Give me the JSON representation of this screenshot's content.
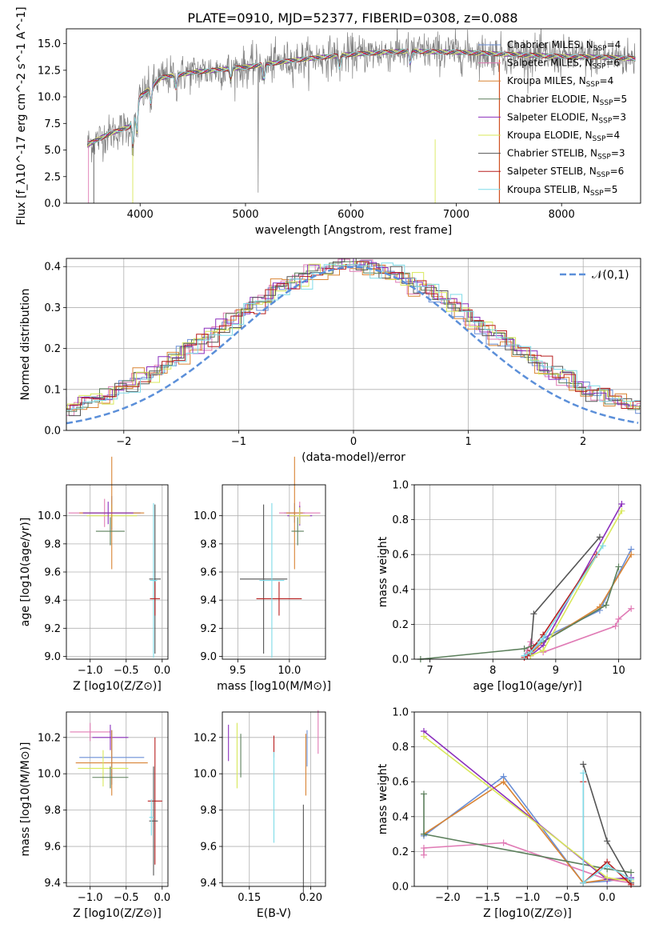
{
  "figure": {
    "title": "PLATE=0910, MJD=52377, FIBERID=0308, z=0.088"
  },
  "models": [
    {
      "name": "Chabrier MILES",
      "nssp": 4,
      "color": "#6a8fd6"
    },
    {
      "name": "Salpeter MILES",
      "nssp": 6,
      "color": "#e07bb5"
    },
    {
      "name": "Kroupa MILES",
      "nssp": 4,
      "color": "#d98434"
    },
    {
      "name": "Chabrier ELODIE",
      "nssp": 5,
      "color": "#5b7f5b"
    },
    {
      "name": "Salpeter ELODIE",
      "nssp": 3,
      "color": "#8b2fbd"
    },
    {
      "name": "Kroupa ELODIE",
      "nssp": 4,
      "color": "#d8e85a"
    },
    {
      "name": "Chabrier STELIB",
      "nssp": 3,
      "color": "#555555"
    },
    {
      "name": "Salpeter STELIB",
      "nssp": 6,
      "color": "#b81f1f"
    },
    {
      "name": "Kroupa STELIB",
      "nssp": 5,
      "color": "#7fdbe8"
    }
  ],
  "chart_data": [
    {
      "id": "spectrum",
      "type": "line",
      "title": "PLATE=0910, MJD=52377, FIBERID=0308, z=0.088",
      "xlabel": "wavelength [Angstrom, rest frame]",
      "ylabel": "Flux [f_λ10^-17 erg cm^-2 s^-1 A^-1]",
      "xlim": [
        3300,
        8750
      ],
      "ylim": [
        0,
        16.4
      ],
      "xticks": [
        "4000",
        "5000",
        "6000",
        "7000",
        "8000"
      ],
      "yticks": [
        "0.0",
        "2.5",
        "5.0",
        "7.5",
        "10.0",
        "12.5",
        "15.0"
      ],
      "data_color": "#808080",
      "continuum": {
        "x": [
          3500,
          3700,
          3900,
          4000,
          4200,
          4500,
          5000,
          5500,
          6000,
          6500,
          7000,
          7500,
          8000,
          8500,
          8700
        ],
        "y": [
          5.5,
          6.5,
          7.2,
          10.0,
          11.8,
          12.3,
          12.8,
          13.5,
          14.0,
          14.3,
          14.2,
          14.0,
          13.8,
          13.7,
          13.6
        ]
      },
      "grid": false,
      "legend": "upper right"
    },
    {
      "id": "residuals",
      "type": "histogram",
      "xlabel": "(data-model)/error",
      "ylabel": "Normed distribution",
      "xlim": [
        -2.5,
        2.5
      ],
      "ylim": [
        0,
        0.42
      ],
      "xticks": [
        "−2",
        "−1",
        "0",
        "1",
        "2"
      ],
      "yticks": [
        "0.0",
        "0.1",
        "0.2",
        "0.3",
        "0.4"
      ],
      "reference": {
        "name": "𝒩(0,1)",
        "mean": 0,
        "sigma": 1,
        "color": "#5b8fd9"
      },
      "grid": true,
      "legend": "upper right"
    },
    {
      "id": "age-vs-Z",
      "type": "errorbar",
      "xlabel": "Z [log10(Z/Z⊙)]",
      "ylabel": "age [log10(age/yr)]",
      "xlim": [
        -1.33,
        0.08
      ],
      "ylim": [
        8.98,
        10.22
      ],
      "xticks": [
        "−1.0",
        "−0.5",
        "0.0"
      ],
      "yticks": [
        "9.0",
        "9.2",
        "9.4",
        "9.6",
        "9.8",
        "10.0"
      ],
      "points": [
        {
          "x": -0.8,
          "y": 10.02,
          "xerr": 0.5,
          "yerr": 0.1,
          "model": 1
        },
        {
          "x": -0.7,
          "y": 10.02,
          "xerr": 0.4,
          "yerr": 0.12,
          "model": 0
        },
        {
          "x": -0.7,
          "y": 10.0,
          "xerr": 0.35,
          "yerr": 0.08,
          "model": 5
        },
        {
          "x": -0.7,
          "y": 10.02,
          "xerr": 0.45,
          "yerr": 0.4,
          "model": 2
        },
        {
          "x": -0.75,
          "y": 10.02,
          "xerr": 0.35,
          "yerr": 0.08,
          "model": 4
        },
        {
          "x": -0.72,
          "y": 9.89,
          "xerr": 0.2,
          "yerr": 0.1,
          "model": 3
        },
        {
          "x": -0.1,
          "y": 9.55,
          "xerr": 0.08,
          "yerr": 0.53,
          "model": 6
        },
        {
          "x": -0.12,
          "y": 9.54,
          "xerr": 0.05,
          "yerr": 0.55,
          "model": 8
        },
        {
          "x": -0.1,
          "y": 9.41,
          "xerr": 0.07,
          "yerr": 0.12,
          "model": 7
        }
      ],
      "grid": true
    },
    {
      "id": "age-vs-mass",
      "type": "errorbar",
      "xlabel": "mass [log10(M/M⊙)]",
      "ylabel": "",
      "xlim": [
        9.35,
        10.35
      ],
      "ylim": [
        8.98,
        10.22
      ],
      "xticks": [
        "9.5",
        "10.0"
      ],
      "yticks": [
        "9.0",
        "9.2",
        "9.4",
        "9.6",
        "9.8",
        "10.0"
      ],
      "points": [
        {
          "x": 10.05,
          "y": 10.02,
          "xerr": 0.1,
          "yerr": 0.07,
          "model": 0
        },
        {
          "x": 10.1,
          "y": 10.02,
          "xerr": 0.2,
          "yerr": 0.08,
          "model": 1
        },
        {
          "x": 10.05,
          "y": 10.02,
          "xerr": 0.08,
          "yerr": 0.4,
          "model": 2
        },
        {
          "x": 10.08,
          "y": 9.89,
          "xerr": 0.06,
          "yerr": 0.1,
          "model": 3
        },
        {
          "x": 10.1,
          "y": 10.0,
          "xerr": 0.12,
          "yerr": 0.07,
          "model": 4
        },
        {
          "x": 10.1,
          "y": 10.0,
          "xerr": 0.1,
          "yerr": 0.06,
          "model": 5
        },
        {
          "x": 9.75,
          "y": 9.55,
          "xerr": 0.23,
          "yerr": 0.53,
          "model": 6
        },
        {
          "x": 9.9,
          "y": 9.41,
          "xerr": 0.22,
          "yerr": 0.12,
          "model": 7
        },
        {
          "x": 9.83,
          "y": 9.54,
          "xerr": 0.12,
          "yerr": 0.55,
          "model": 8
        }
      ],
      "grid": true
    },
    {
      "id": "weight-vs-age",
      "type": "line",
      "xlabel": "age [log10(age/yr)]",
      "ylabel": "mass weight",
      "xlim": [
        6.75,
        10.35
      ],
      "ylim": [
        0,
        1.0
      ],
      "xticks": [
        "7",
        "8",
        "9",
        "10"
      ],
      "yticks": [
        "0.0",
        "0.2",
        "0.4",
        "0.6",
        "0.8",
        "1.0"
      ],
      "series": [
        {
          "model": 0,
          "x": [
            8.5,
            8.6,
            8.8,
            9.7,
            10.2
          ],
          "y": [
            0.02,
            0.03,
            0.12,
            0.28,
            0.63
          ]
        },
        {
          "model": 1,
          "x": [
            8.5,
            8.55,
            8.6,
            8.8,
            9.95,
            10.0,
            10.2
          ],
          "y": [
            0.02,
            0.05,
            0.1,
            0.04,
            0.19,
            0.23,
            0.29
          ]
        },
        {
          "model": 2,
          "x": [
            8.6,
            8.8,
            9.7,
            10.2
          ],
          "y": [
            0.03,
            0.1,
            0.3,
            0.6
          ]
        },
        {
          "model": 3,
          "x": [
            6.85,
            8.5,
            8.8,
            9.8,
            10.0
          ],
          "y": [
            0.0,
            0.06,
            0.1,
            0.31,
            0.53
          ]
        },
        {
          "model": 4,
          "x": [
            8.6,
            8.8,
            10.05
          ],
          "y": [
            0.02,
            0.08,
            0.89
          ]
        },
        {
          "model": 5,
          "x": [
            8.6,
            8.8,
            10.05
          ],
          "y": [
            0.02,
            0.05,
            0.85
          ]
        },
        {
          "model": 6,
          "x": [
            8.6,
            8.65,
            9.7
          ],
          "y": [
            0.04,
            0.26,
            0.7
          ]
        },
        {
          "model": 7,
          "x": [
            8.5,
            8.55,
            8.6,
            8.8,
            9.65
          ],
          "y": [
            0.01,
            0.02,
            0.05,
            0.14,
            0.6
          ]
        },
        {
          "model": 8,
          "x": [
            8.5,
            8.6,
            8.75,
            8.8,
            9.75
          ],
          "y": [
            0.02,
            0.04,
            0.1,
            0.12,
            0.65
          ]
        }
      ],
      "grid": true
    },
    {
      "id": "mass-vs-Z",
      "type": "errorbar",
      "xlabel": "Z [log10(Z/Z⊙)]",
      "ylabel": "mass [log10(M/M⊙)]",
      "xlim": [
        -1.33,
        0.08
      ],
      "ylim": [
        9.38,
        10.34
      ],
      "xticks": [
        "−1.0",
        "−0.5",
        "0.0"
      ],
      "yticks": [
        "9.4",
        "9.6",
        "9.8",
        "10.0",
        "10.2"
      ],
      "points": [
        {
          "x": -1.0,
          "y": 10.23,
          "xerr": 0.28,
          "yerr": 0.05,
          "model": 1
        },
        {
          "x": -0.72,
          "y": 10.2,
          "xerr": 0.25,
          "yerr": 0.07,
          "model": 4
        },
        {
          "x": -0.7,
          "y": 10.09,
          "xerr": 0.45,
          "yerr": 0.15,
          "model": 0
        },
        {
          "x": -0.7,
          "y": 10.06,
          "xerr": 0.5,
          "yerr": 0.18,
          "model": 2
        },
        {
          "x": -0.82,
          "y": 10.03,
          "xerr": 0.35,
          "yerr": 0.1,
          "model": 5
        },
        {
          "x": -0.72,
          "y": 9.98,
          "xerr": 0.25,
          "yerr": 0.06,
          "model": 3
        },
        {
          "x": -0.1,
          "y": 9.85,
          "xerr": 0.1,
          "yerr": 0.35,
          "model": 7
        },
        {
          "x": -0.12,
          "y": 9.74,
          "xerr": 0.06,
          "yerr": 0.3,
          "model": 6
        },
        {
          "x": -0.15,
          "y": 9.76,
          "xerr": 0.03,
          "yerr": 0.1,
          "model": 8
        }
      ],
      "grid": true
    },
    {
      "id": "mass-vs-EBV",
      "type": "errorbar",
      "xlabel": "E(B-V)",
      "ylabel": "",
      "xlim": [
        0.128,
        0.212
      ],
      "ylim": [
        9.38,
        10.34
      ],
      "xticks": [
        "0.15",
        "0.20"
      ],
      "yticks": [
        "9.4",
        "9.6",
        "9.8",
        "10.0",
        "10.2"
      ],
      "points": [
        {
          "x": 0.133,
          "y": 10.17,
          "xerr": 0,
          "yerr": 0.1,
          "model": 4
        },
        {
          "x": 0.14,
          "y": 10.1,
          "xerr": 0,
          "yerr": 0.18,
          "model": 5
        },
        {
          "x": 0.143,
          "y": 10.1,
          "xerr": 0,
          "yerr": 0.12,
          "model": 3
        },
        {
          "x": 0.17,
          "y": 10.15,
          "xerr": 0,
          "yerr": 0.06,
          "model": 7
        },
        {
          "x": 0.17,
          "y": 9.87,
          "xerr": 0,
          "yerr": 0.25,
          "model": 8
        },
        {
          "x": 0.194,
          "y": 9.58,
          "xerr": 0,
          "yerr": 0.25,
          "model": 6
        },
        {
          "x": 0.196,
          "y": 10.05,
          "xerr": 0,
          "yerr": 0.17,
          "model": 2
        },
        {
          "x": 0.197,
          "y": 10.14,
          "xerr": 0,
          "yerr": 0.1,
          "model": 0
        },
        {
          "x": 0.206,
          "y": 10.23,
          "xerr": 0,
          "yerr": 0.12,
          "model": 1
        }
      ],
      "grid": true
    },
    {
      "id": "weight-vs-Z",
      "type": "line",
      "xlabel": "Z [log10(Z/Z⊙)]",
      "ylabel": "mass weight",
      "xlim": [
        -2.42,
        0.42
      ],
      "ylim": [
        0,
        1.0
      ],
      "xticks": [
        "−2.0",
        "−1.5",
        "−1.0",
        "−0.5",
        "0.0"
      ],
      "yticks": [
        "0.0",
        "0.2",
        "0.4",
        "0.6",
        "0.8",
        "1.0"
      ],
      "series": [
        {
          "model": 0,
          "x": [
            -2.3,
            -1.3,
            -0.3,
            0.0,
            0.3
          ],
          "y": [
            0.29,
            0.63,
            0.02,
            0.03,
            0.05
          ]
        },
        {
          "model": 1,
          "x": [
            -2.3,
            -2.3,
            -1.3,
            0.0,
            0.3
          ],
          "y": [
            0.18,
            0.22,
            0.25,
            0.04,
            0.02
          ]
        },
        {
          "model": 2,
          "x": [
            -2.3,
            -1.3,
            -0.3,
            0.0,
            0.3
          ],
          "y": [
            0.3,
            0.6,
            0.02,
            0.04,
            0.04
          ]
        },
        {
          "model": 3,
          "x": [
            -2.3,
            -2.3,
            0.0,
            0.3
          ],
          "y": [
            0.53,
            0.3,
            0.1,
            0.08
          ]
        },
        {
          "model": 4,
          "x": [
            -2.3,
            0.0,
            0.3
          ],
          "y": [
            0.89,
            0.04,
            0.05
          ]
        },
        {
          "model": 5,
          "x": [
            -2.3,
            0.0,
            0.3
          ],
          "y": [
            0.86,
            0.05,
            0.03
          ]
        },
        {
          "model": 6,
          "x": [
            -0.3,
            0.0,
            0.3
          ],
          "y": [
            0.7,
            0.26,
            0.02
          ]
        },
        {
          "model": 7,
          "x": [
            -0.3,
            -0.3,
            0.0,
            0.3
          ],
          "y": [
            0.6,
            0.02,
            0.14,
            0.01
          ]
        },
        {
          "model": 8,
          "x": [
            -0.3,
            -0.3,
            0.0,
            0.3
          ],
          "y": [
            0.65,
            0.02,
            0.12,
            0.04
          ]
        }
      ],
      "grid": true
    }
  ]
}
